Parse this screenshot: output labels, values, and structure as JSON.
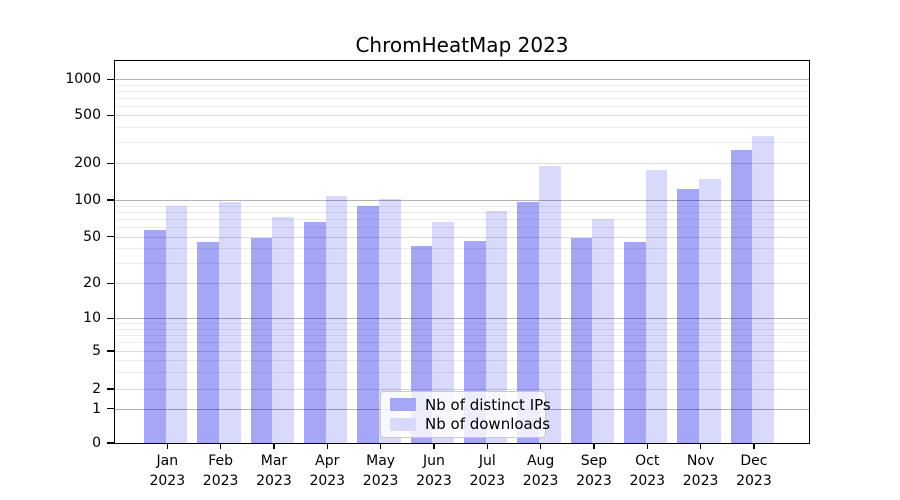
{
  "chart_data": {
    "type": "bar",
    "title": "ChromHeatMap 2023",
    "categories": [
      "Jan 2023",
      "Feb 2023",
      "Mar 2023",
      "Apr 2023",
      "May 2023",
      "Jun 2023",
      "Jul 2023",
      "Aug 2023",
      "Sep 2023",
      "Oct 2023",
      "Nov 2023",
      "Dec 2023"
    ],
    "month_labels": [
      "Jan",
      "Feb",
      "Mar",
      "Apr",
      "May",
      "Jun",
      "Jul",
      "Aug",
      "Sep",
      "Oct",
      "Nov",
      "Dec"
    ],
    "year_label": "2023",
    "series": [
      {
        "name": "Nb of distinct IPs",
        "swatch_color": "#a6a6f6",
        "fill": "rgba(0,0,230,0.35)",
        "values": [
          57,
          45,
          49,
          66,
          90,
          42,
          46,
          96,
          49,
          45,
          122,
          260
        ]
      },
      {
        "name": "Nb of downloads",
        "swatch_color": "#d9d9fb",
        "fill": "rgba(0,0,230,0.15)",
        "values": [
          90,
          97,
          73,
          107,
          102,
          66,
          82,
          190,
          70,
          175,
          148,
          340
        ]
      }
    ],
    "yscale": "symlog",
    "yticks": [
      0,
      1,
      2,
      5,
      10,
      20,
      50,
      100,
      200,
      500,
      1000
    ],
    "ylim": [
      0,
      1500
    ],
    "grid": true,
    "legend_position": "lower center",
    "grid_colors": {
      "decade": "#b3b3b3",
      "major": "#d9d9d9",
      "minor": "#ececec"
    }
  }
}
